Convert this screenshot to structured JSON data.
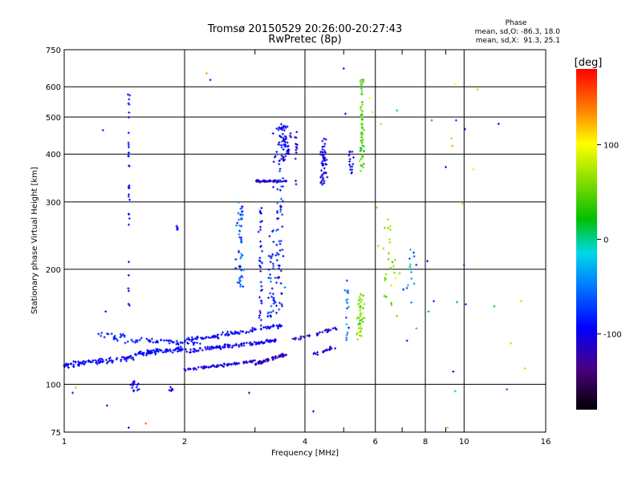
{
  "chart_data": {
    "type": "scatter",
    "title": "Tromsø 20150529 20:26:00-20:27:43",
    "subtitle": "RwPretec (8p)",
    "xlabel": "Frequency [MHz]",
    "ylabel": "Stationary phase Virtual Height [km]",
    "x_scale": "log",
    "y_scale": "log",
    "xlim": [
      1,
      16
    ],
    "ylim": [
      75,
      750
    ],
    "x_ticks": [
      {
        "value": 1,
        "label": "1"
      },
      {
        "value": 2,
        "label": "2"
      },
      {
        "value": 4,
        "label": "4"
      },
      {
        "value": 6,
        "label": "6"
      },
      {
        "value": 8,
        "label": "8"
      },
      {
        "value": 10,
        "label": "10"
      },
      {
        "value": 16,
        "label": "16"
      }
    ],
    "x_minor": [
      3,
      5,
      7,
      9
    ],
    "y_ticks": [
      {
        "value": 75,
        "label": "75"
      },
      {
        "value": 100,
        "label": "100"
      },
      {
        "value": 200,
        "label": "200"
      },
      {
        "value": 300,
        "label": "300"
      },
      {
        "value": 400,
        "label": "400"
      },
      {
        "value": 500,
        "label": "500"
      },
      {
        "value": 600,
        "label": "600"
      },
      {
        "value": 750,
        "label": "750"
      }
    ],
    "grid": true,
    "phase_stats": {
      "title": "Phase",
      "line1": "mean, sd,O: -86.3, 18.0",
      "line2": "mean, sd,X:  91.3, 25.1"
    },
    "colorbar": {
      "label": "[deg]",
      "min": -180,
      "max": 180,
      "ticks": [
        {
          "value": 100,
          "label": "100"
        },
        {
          "value": 0,
          "label": "0"
        },
        {
          "value": -100,
          "label": "-100"
        }
      ]
    },
    "traces": [
      {
        "kind": "band",
        "f0": 1.0,
        "h0": 112,
        "f1": 1.5,
        "h1": 118,
        "n": 90,
        "spread": 0.025,
        "phase": -95,
        "psd": 12
      },
      {
        "kind": "band",
        "f0": 1.5,
        "h0": 120,
        "f1": 2.0,
        "h1": 124,
        "n": 80,
        "spread": 0.02,
        "phase": -92,
        "psd": 10
      },
      {
        "kind": "band",
        "f0": 1.5,
        "h0": 130,
        "f1": 2.2,
        "h1": 128,
        "n": 50,
        "spread": 0.02,
        "phase": -88,
        "psd": 10
      },
      {
        "kind": "band",
        "f0": 2.0,
        "h0": 122,
        "f1": 3.4,
        "h1": 130,
        "n": 110,
        "spread": 0.018,
        "phase": -100,
        "psd": 12
      },
      {
        "kind": "band",
        "f0": 2.0,
        "h0": 130,
        "f1": 3.5,
        "h1": 142,
        "n": 90,
        "spread": 0.02,
        "phase": -95,
        "psd": 12
      },
      {
        "kind": "band",
        "f0": 2.0,
        "h0": 109,
        "f1": 3.0,
        "h1": 115,
        "n": 70,
        "spread": 0.012,
        "phase": -105,
        "psd": 8
      },
      {
        "kind": "band",
        "f0": 3.0,
        "h0": 113,
        "f1": 3.6,
        "h1": 120,
        "n": 60,
        "spread": 0.012,
        "phase": -120,
        "psd": 10
      },
      {
        "kind": "band",
        "f0": 3.0,
        "h0": 340,
        "f1": 3.6,
        "h1": 340,
        "n": 55,
        "spread": 0.008,
        "phase": -110,
        "psd": 8
      },
      {
        "kind": "band",
        "f0": 3.7,
        "h0": 130,
        "f1": 4.8,
        "h1": 140,
        "n": 35,
        "spread": 0.015,
        "phase": -112,
        "psd": 10
      },
      {
        "kind": "band",
        "f0": 4.2,
        "h0": 120,
        "f1": 4.8,
        "h1": 125,
        "n": 20,
        "spread": 0.015,
        "phase": -110,
        "psd": 12
      },
      {
        "kind": "band",
        "f0": 1.2,
        "h0": 136,
        "f1": 1.5,
        "h1": 130,
        "n": 25,
        "spread": 0.03,
        "phase": -85,
        "psd": 12
      },
      {
        "kind": "column",
        "f": 1.45,
        "fs": 0.008,
        "h0": 260,
        "h1": 580,
        "n": 28,
        "phase": -90,
        "psd": 10
      },
      {
        "kind": "column",
        "f": 1.45,
        "fs": 0.008,
        "h0": 160,
        "h1": 215,
        "n": 6,
        "phase": -100,
        "psd": 10
      },
      {
        "kind": "column",
        "f": 2.75,
        "fs": 0.03,
        "h0": 180,
        "h1": 300,
        "n": 55,
        "phase": -60,
        "psd": 60
      },
      {
        "kind": "column",
        "f": 3.1,
        "fs": 0.015,
        "h0": 140,
        "h1": 290,
        "n": 35,
        "phase": -95,
        "psd": 25
      },
      {
        "kind": "column",
        "f": 3.3,
        "fs": 0.04,
        "h0": 150,
        "h1": 260,
        "n": 45,
        "phase": -80,
        "psd": 50
      },
      {
        "kind": "column",
        "f": 3.45,
        "fs": 0.04,
        "h0": 150,
        "h1": 470,
        "n": 70,
        "phase": -85,
        "psd": 55
      },
      {
        "kind": "column",
        "f": 3.55,
        "fs": 0.05,
        "h0": 380,
        "h1": 480,
        "n": 55,
        "phase": -100,
        "psd": 20
      },
      {
        "kind": "column",
        "f": 3.8,
        "fs": 0.01,
        "h0": 330,
        "h1": 460,
        "n": 12,
        "phase": -110,
        "psd": 12
      },
      {
        "kind": "column",
        "f": 4.45,
        "fs": 0.03,
        "h0": 330,
        "h1": 440,
        "n": 50,
        "phase": -105,
        "psd": 35
      },
      {
        "kind": "column",
        "f": 5.2,
        "fs": 0.025,
        "h0": 355,
        "h1": 420,
        "n": 15,
        "phase": -100,
        "psd": 15
      },
      {
        "kind": "column",
        "f": 5.55,
        "fs": 0.015,
        "h0": 360,
        "h1": 640,
        "n": 60,
        "phase": 40,
        "psd": 60
      },
      {
        "kind": "column",
        "f": 5.5,
        "fs": 0.03,
        "h0": 130,
        "h1": 175,
        "n": 45,
        "phase": 60,
        "psd": 50
      },
      {
        "kind": "column",
        "f": 5.1,
        "fs": 0.02,
        "h0": 130,
        "h1": 200,
        "n": 18,
        "phase": -60,
        "psd": 60
      },
      {
        "kind": "column",
        "f": 6.5,
        "fs": 0.05,
        "h0": 150,
        "h1": 290,
        "n": 30,
        "phase": 60,
        "psd": 40
      },
      {
        "kind": "column",
        "f": 7.4,
        "fs": 0.05,
        "h0": 160,
        "h1": 230,
        "n": 14,
        "phase": -40,
        "psd": 80
      },
      {
        "kind": "column",
        "f": 1.92,
        "fs": 0.01,
        "h0": 250,
        "h1": 265,
        "n": 5,
        "phase": -90,
        "psd": 10
      },
      {
        "kind": "column",
        "f": 1.5,
        "fs": 0.04,
        "h0": 96,
        "h1": 102,
        "n": 14,
        "phase": -95,
        "psd": 10
      },
      {
        "kind": "column",
        "f": 1.85,
        "fs": 0.02,
        "h0": 96,
        "h1": 100,
        "n": 6,
        "phase": -100,
        "psd": 10
      }
    ],
    "points": [
      {
        "f": 2.27,
        "h": 650,
        "p": 130
      },
      {
        "f": 2.32,
        "h": 625,
        "p": -90
      },
      {
        "f": 1.25,
        "h": 462,
        "p": -80
      },
      {
        "f": 1.27,
        "h": 155,
        "p": -100
      },
      {
        "f": 1.05,
        "h": 95,
        "p": -80
      },
      {
        "f": 1.07,
        "h": 98,
        "p": 120
      },
      {
        "f": 1.28,
        "h": 88,
        "p": -100
      },
      {
        "f": 1.45,
        "h": 77,
        "p": -90
      },
      {
        "f": 1.6,
        "h": 79,
        "p": 150
      },
      {
        "f": 2.9,
        "h": 95,
        "p": -120
      },
      {
        "f": 4.2,
        "h": 85,
        "p": -100
      },
      {
        "f": 5.0,
        "h": 670,
        "p": -100
      },
      {
        "f": 5.05,
        "h": 510,
        "p": -100
      },
      {
        "f": 5.8,
        "h": 560,
        "p": 100
      },
      {
        "f": 5.9,
        "h": 515,
        "p": 110
      },
      {
        "f": 6.2,
        "h": 480,
        "p": 120
      },
      {
        "f": 6.8,
        "h": 520,
        "p": 10
      },
      {
        "f": 6.1,
        "h": 230,
        "p": 120
      },
      {
        "f": 8.3,
        "h": 490,
        "p": 20
      },
      {
        "f": 9.0,
        "h": 370,
        "p": -100
      },
      {
        "f": 9.3,
        "h": 440,
        "p": 120
      },
      {
        "f": 9.35,
        "h": 420,
        "p": 130
      },
      {
        "f": 9.5,
        "h": 610,
        "p": 100
      },
      {
        "f": 9.55,
        "h": 490,
        "p": -80
      },
      {
        "f": 9.9,
        "h": 297,
        "p": 120
      },
      {
        "f": 10.05,
        "h": 465,
        "p": -100
      },
      {
        "f": 10.55,
        "h": 365,
        "p": 110
      },
      {
        "f": 12.2,
        "h": 480,
        "p": -110
      },
      {
        "f": 10.8,
        "h": 590,
        "p": 120
      },
      {
        "f": 8.4,
        "h": 165,
        "p": -80
      },
      {
        "f": 8.1,
        "h": 210,
        "p": -100
      },
      {
        "f": 8.15,
        "h": 155,
        "p": 20
      },
      {
        "f": 9.4,
        "h": 108,
        "p": -120
      },
      {
        "f": 9.5,
        "h": 96,
        "p": -20
      },
      {
        "f": 9.6,
        "h": 164,
        "p": 20
      },
      {
        "f": 10.0,
        "h": 205,
        "p": -80
      },
      {
        "f": 10.1,
        "h": 162,
        "p": -80
      },
      {
        "f": 11.9,
        "h": 160,
        "p": 20
      },
      {
        "f": 12.8,
        "h": 97,
        "p": -60
      },
      {
        "f": 13.1,
        "h": 128,
        "p": 120
      },
      {
        "f": 13.9,
        "h": 165,
        "p": 120
      },
      {
        "f": 14.2,
        "h": 110,
        "p": 120
      },
      {
        "f": 9.1,
        "h": 77,
        "p": 120
      },
      {
        "f": 7.2,
        "h": 130,
        "p": -100
      },
      {
        "f": 7.6,
        "h": 140,
        "p": 40
      },
      {
        "f": 6.05,
        "h": 290,
        "p": 60
      },
      {
        "f": 6.9,
        "h": 195,
        "p": 60
      },
      {
        "f": 7.05,
        "h": 177,
        "p": -100
      }
    ]
  }
}
